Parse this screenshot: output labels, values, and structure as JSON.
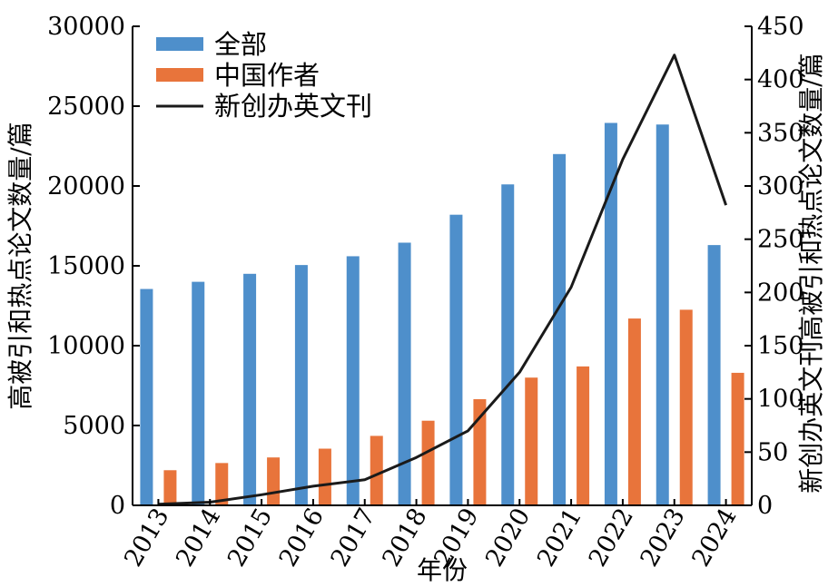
{
  "chart_data": {
    "type": "bar",
    "categories": [
      "2013",
      "2014",
      "2015",
      "2016",
      "2017",
      "2018",
      "2019",
      "2020",
      "2021",
      "2022",
      "2023",
      "2024"
    ],
    "series": [
      {
        "name": "全部",
        "type": "bar",
        "axis": "left",
        "color": "#4E8FCB",
        "values": [
          13550,
          14000,
          14500,
          15050,
          15600,
          16450,
          18200,
          20100,
          22000,
          23950,
          23850,
          16300
        ]
      },
      {
        "name": "中国作者",
        "type": "bar",
        "axis": "left",
        "color": "#E8743B",
        "values": [
          2200,
          2650,
          3000,
          3550,
          4350,
          5300,
          6650,
          8000,
          8700,
          11700,
          12250,
          8300
        ]
      },
      {
        "name": "新创办英文刊",
        "type": "line",
        "axis": "right",
        "color": "#1a1a1a",
        "values": [
          1,
          3,
          10,
          18,
          24,
          45,
          70,
          125,
          205,
          325,
          423,
          282
        ]
      }
    ],
    "xlabel": "年份",
    "ylabel": "高被引和热点论文数量/篇",
    "y2label": "新创办英文刊高被引和热点论文数量/篇",
    "ylim": [
      0,
      30000
    ],
    "y2lim": [
      0,
      450
    ],
    "yticks": [
      "0",
      "5000",
      "10000",
      "15000",
      "20000",
      "25000",
      "30000"
    ],
    "y2ticks": [
      "0",
      "50",
      "100",
      "150",
      "200",
      "250",
      "300",
      "350",
      "400",
      "450"
    ],
    "grid": false,
    "legend_position": "top-left"
  }
}
